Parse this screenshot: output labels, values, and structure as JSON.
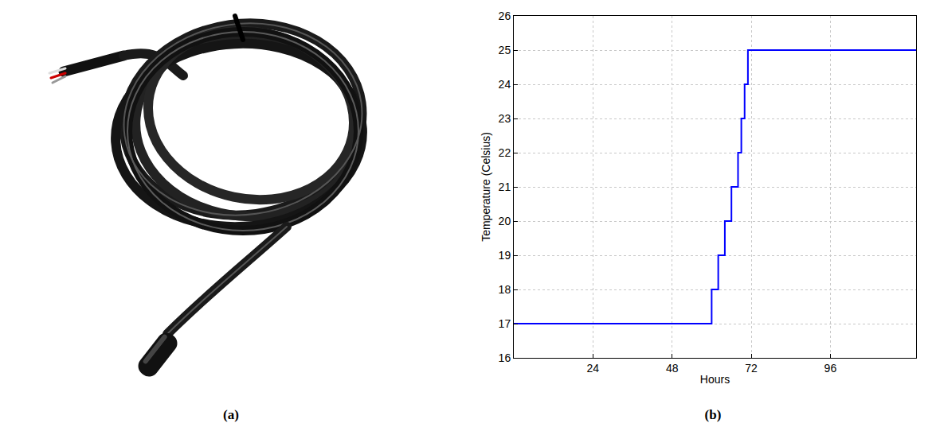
{
  "panels": {
    "a": {
      "label": "(a)"
    },
    "b": {
      "label": "(b)"
    }
  },
  "chart_data": {
    "type": "line",
    "xlabel": "Hours",
    "ylabel": "Temperature (Celsius)",
    "x": [
      0,
      60,
      62,
      64,
      66,
      68,
      69,
      70,
      71,
      122
    ],
    "values": [
      17,
      18,
      19,
      20,
      21,
      22,
      23,
      24,
      25,
      25
    ],
    "color": "#0000ff",
    "line_style": "step",
    "xlim": [
      0,
      122
    ],
    "xticks": [
      24,
      48,
      72,
      96
    ],
    "ylim": [
      16,
      26
    ],
    "yticks": [
      16,
      17,
      18,
      19,
      20,
      21,
      22,
      23,
      24,
      25,
      26
    ],
    "grid": true
  }
}
